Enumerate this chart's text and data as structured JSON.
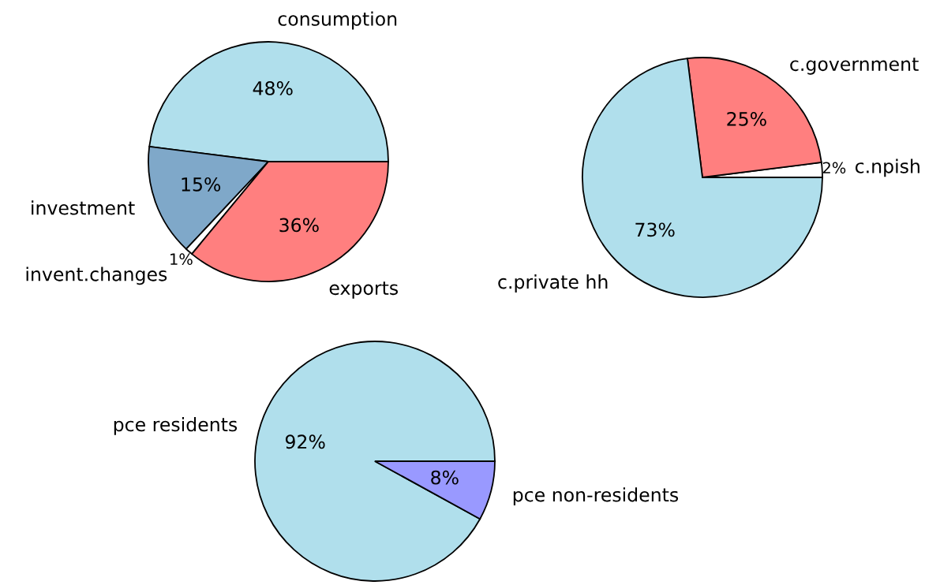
{
  "chart_data": [
    {
      "type": "pie",
      "categories": [
        "consumption",
        "investment",
        "invent.changes",
        "exports"
      ],
      "values": [
        48,
        15,
        1,
        36
      ],
      "colors": [
        "#b0dfec",
        "#7fa8c9",
        "#ffffff",
        "#ff7f7f"
      ],
      "value_labels": [
        "48%",
        "15%",
        "1%",
        "36%"
      ]
    },
    {
      "type": "pie",
      "categories": [
        "c.npish",
        "c.government",
        "c.private hh"
      ],
      "values": [
        2,
        25,
        73
      ],
      "colors": [
        "#ffffff",
        "#ff7f7f",
        "#b0dfec"
      ],
      "value_labels": [
        "2%",
        "25%",
        "73%"
      ]
    },
    {
      "type": "pie",
      "categories": [
        "pce residents",
        "pce non-residents"
      ],
      "values": [
        92,
        8
      ],
      "colors": [
        "#b0dfec",
        "#9999ff"
      ],
      "value_labels": [
        "92%",
        "8%"
      ]
    }
  ]
}
